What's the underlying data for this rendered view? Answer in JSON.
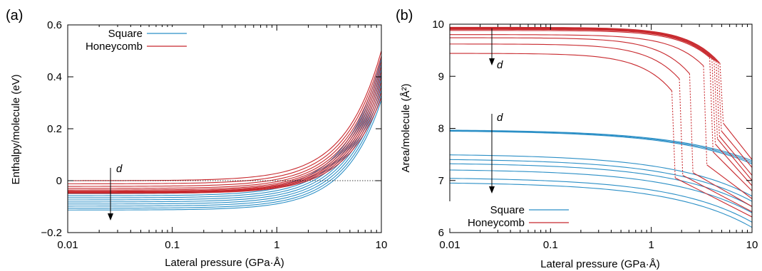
{
  "chart_data": [
    {
      "id": "a",
      "type": "line",
      "panel_label": "(a)",
      "xlabel": "Lateral pressure (GPa·Å)",
      "ylabel": "Enthalpy/molecule (eV)",
      "xscale": "log",
      "xlim": [
        0.01,
        10
      ],
      "ylim": [
        -0.2,
        0.6
      ],
      "xticks": [
        0.01,
        0.1,
        1,
        10
      ],
      "xtick_labels": [
        "0.01",
        "0.1",
        "1",
        "10"
      ],
      "yticks": [
        -0.2,
        0,
        0.2,
        0.4,
        0.6
      ],
      "ytick_labels": [
        "−0.2",
        "0",
        "0.2",
        "0.4",
        "0.6"
      ],
      "grid": false,
      "legend_position": "top-left",
      "reference_line_y": 0,
      "annotation": "d",
      "series": [
        {
          "name": "Square",
          "color": "#2b8fc6",
          "kind": "enthalpy",
          "h0": [
            -0.05,
            -0.058,
            -0.066,
            -0.074,
            -0.082,
            -0.09,
            -0.098,
            -0.106,
            -0.113
          ],
          "h10": [
            0.47,
            0.45,
            0.43,
            0.41,
            0.39,
            0.37,
            0.35,
            0.33,
            0.31
          ]
        },
        {
          "name": "Honeycomb",
          "color": "#c8282d",
          "kind": "enthalpy",
          "h0": [
            0.0,
            -0.012,
            -0.022,
            -0.03,
            -0.036,
            -0.04,
            -0.043,
            -0.045,
            -0.047,
            -0.049
          ],
          "h10": [
            0.5,
            0.48,
            0.46,
            0.44,
            0.42,
            0.4,
            0.38,
            0.36,
            0.34,
            0.32
          ]
        }
      ]
    },
    {
      "id": "b",
      "type": "line",
      "panel_label": "(b)",
      "xlabel": "Lateral pressure (GPa·Å)",
      "ylabel": "Area/molecule (Å²)",
      "xscale": "log",
      "xlim": [
        0.01,
        10
      ],
      "ylim": [
        6,
        10
      ],
      "xticks": [
        0.01,
        0.1,
        1,
        10
      ],
      "xtick_labels": [
        "0.01",
        "0.1",
        "1",
        "10"
      ],
      "yticks": [
        6,
        7,
        8,
        9,
        10
      ],
      "ytick_labels": [
        "6",
        "7",
        "8",
        "9",
        "10"
      ],
      "grid": false,
      "legend_position": "bottom-left",
      "annotation": "d",
      "series": [
        {
          "name": "Square",
          "color": "#2b8fc6",
          "kind": "area",
          "a0": [
            7.98,
            7.97,
            7.96,
            7.51,
            7.42,
            7.34,
            7.22,
            7.06,
            6.97
          ],
          "a10": [
            7.38,
            7.35,
            7.32,
            6.7,
            6.6,
            6.5,
            6.38,
            6.2,
            6.1
          ]
        },
        {
          "name": "Honeycomb",
          "color": "#c8282d",
          "kind": "area",
          "a0": [
            9.94,
            9.93,
            9.92,
            9.91,
            9.9,
            9.88,
            9.8,
            9.74,
            9.62,
            9.44
          ],
          "x_transition": [
            4.8,
            4.6,
            4.4,
            4.2,
            4.0,
            3.8,
            3.3,
            2.4,
            1.9,
            1.6
          ],
          "a_before": [
            9.25,
            9.27,
            9.29,
            9.31,
            9.34,
            9.36,
            9.2,
            9.05,
            8.95,
            8.72
          ],
          "a_after": [
            8.1,
            7.95,
            7.85,
            7.8,
            7.7,
            7.55,
            7.3,
            7.15,
            7.1,
            7.05
          ],
          "a10": [
            7.4,
            7.25,
            7.1,
            7.0,
            6.9,
            6.8,
            6.65,
            6.5,
            6.4,
            6.3
          ]
        }
      ]
    }
  ]
}
